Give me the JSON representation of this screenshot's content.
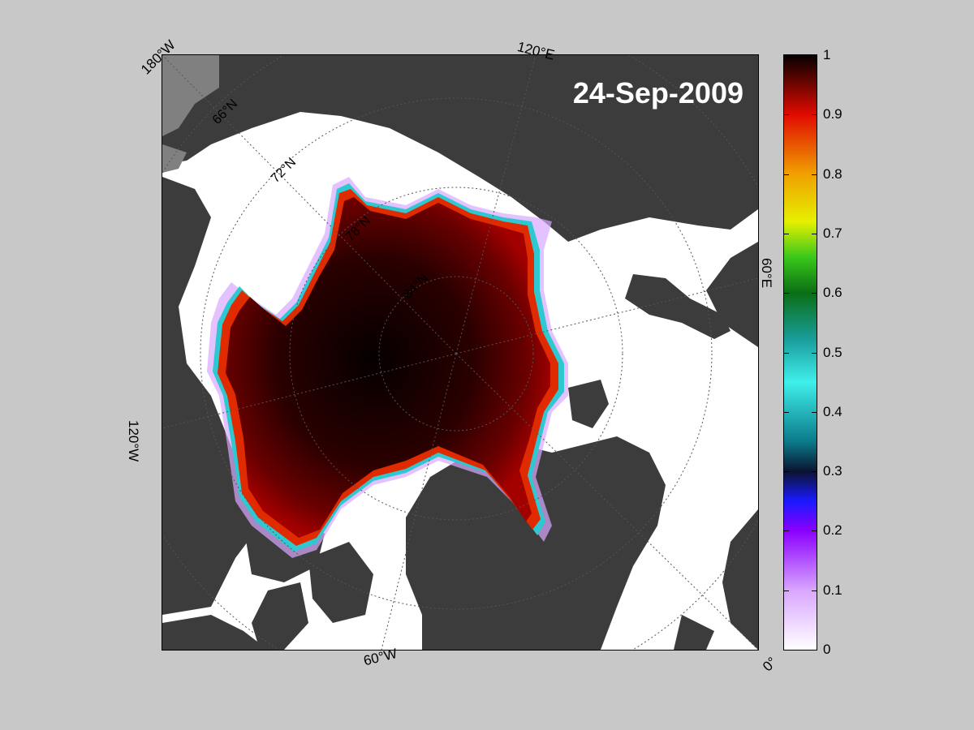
{
  "map": {
    "date_label": "24-Sep-2009",
    "longitude_labels": {
      "lon_180w": "180°W",
      "lon_120e": "120°E",
      "lon_60e": "60°E",
      "lon_120w": "120°W",
      "lon_60w": "60°W",
      "lon_0": "0°"
    },
    "latitude_labels": {
      "lat_66n": "66°N",
      "lat_72n": "72°N",
      "lat_78n": "78°N",
      "lat_84n": "84°N"
    },
    "colors": {
      "ocean_open": "#ffffff",
      "land": "#3c3c3c",
      "land_ice": "#808080",
      "graticule": "#555555",
      "background": "#c8c8c8"
    }
  },
  "colorbar": {
    "title": "",
    "range": [
      0,
      1
    ],
    "tick_labels": [
      "0",
      "0.1",
      "0.2",
      "0.3",
      "0.4",
      "0.5",
      "0.6",
      "0.7",
      "0.8",
      "0.9",
      "1"
    ],
    "color_stops": [
      {
        "value": 0.0,
        "color": "#ffffff"
      },
      {
        "value": 0.1,
        "color": "#d9a6ff"
      },
      {
        "value": 0.2,
        "color": "#8a00ff"
      },
      {
        "value": 0.25,
        "color": "#1a1aff"
      },
      {
        "value": 0.3,
        "color": "#0a1430"
      },
      {
        "value": 0.35,
        "color": "#0a7a8a"
      },
      {
        "value": 0.45,
        "color": "#3ff0ea"
      },
      {
        "value": 0.52,
        "color": "#1a9f9f"
      },
      {
        "value": 0.6,
        "color": "#0a6e14"
      },
      {
        "value": 0.66,
        "color": "#3ac81a"
      },
      {
        "value": 0.72,
        "color": "#e6f000"
      },
      {
        "value": 0.8,
        "color": "#f0a000"
      },
      {
        "value": 0.9,
        "color": "#e00a00"
      },
      {
        "value": 1.0,
        "color": "#050000"
      }
    ]
  }
}
